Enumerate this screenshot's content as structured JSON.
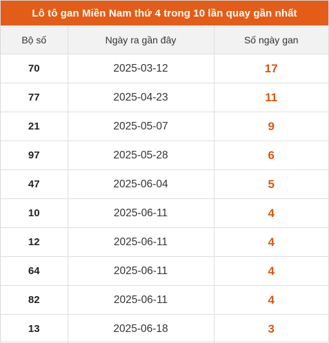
{
  "title": "Lô tô gan Miền Nam thứ 4 trong 10 lần quay gần nhất",
  "columns": [
    "Bộ số",
    "Ngày ra gần đây",
    "Số ngày gan"
  ],
  "rows": [
    {
      "number": "70",
      "date": "2025-03-12",
      "days": "17"
    },
    {
      "number": "77",
      "date": "2025-04-23",
      "days": "11"
    },
    {
      "number": "21",
      "date": "2025-05-07",
      "days": "9"
    },
    {
      "number": "97",
      "date": "2025-05-28",
      "days": "6"
    },
    {
      "number": "47",
      "date": "2025-06-04",
      "days": "5"
    },
    {
      "number": "10",
      "date": "2025-06-11",
      "days": "4"
    },
    {
      "number": "12",
      "date": "2025-06-11",
      "days": "4"
    },
    {
      "number": "64",
      "date": "2025-06-11",
      "days": "4"
    },
    {
      "number": "82",
      "date": "2025-06-11",
      "days": "4"
    },
    {
      "number": "13",
      "date": "2025-06-18",
      "days": "3"
    }
  ],
  "colors": {
    "header_bg": "#e35d18",
    "days_text": "#d6580f",
    "column_header_bg": "#f2f2f2"
  }
}
